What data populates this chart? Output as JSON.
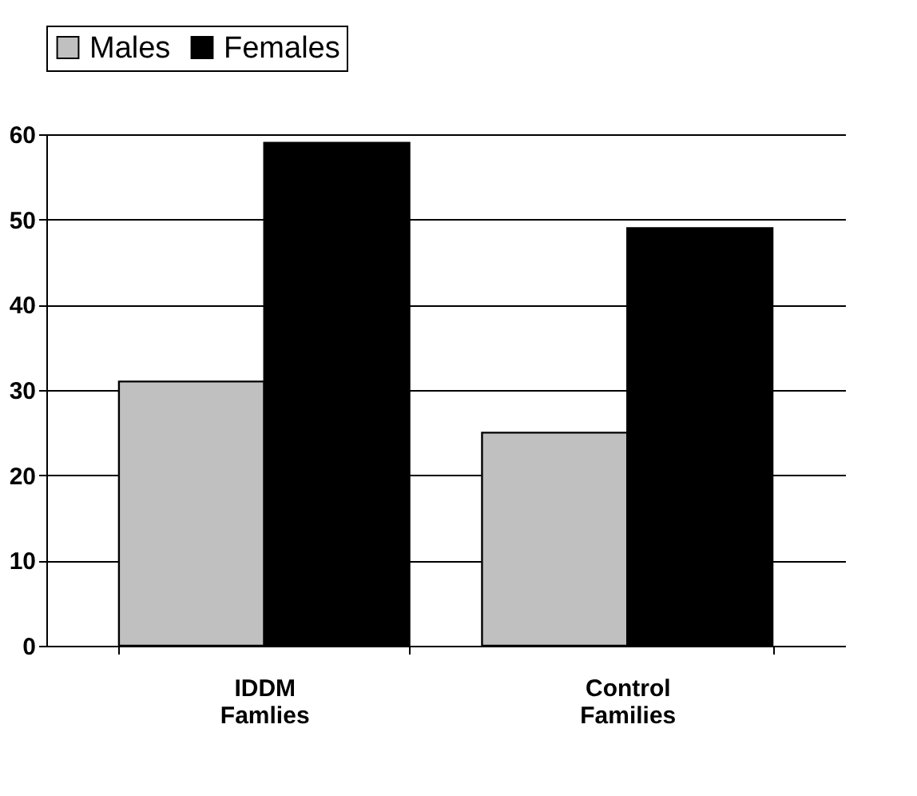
{
  "chart_data": {
    "type": "bar",
    "categories": [
      "IDDM Famlies",
      "Control Families"
    ],
    "series": [
      {
        "name": "Males",
        "color": "#c0c0c0",
        "values": [
          31,
          25
        ]
      },
      {
        "name": "Females",
        "color": "#000000",
        "values": [
          59,
          49
        ]
      }
    ],
    "ylim": [
      0,
      60
    ],
    "yticks": [
      0,
      10,
      20,
      30,
      40,
      50,
      60
    ],
    "grid": "y",
    "legend": "top"
  }
}
